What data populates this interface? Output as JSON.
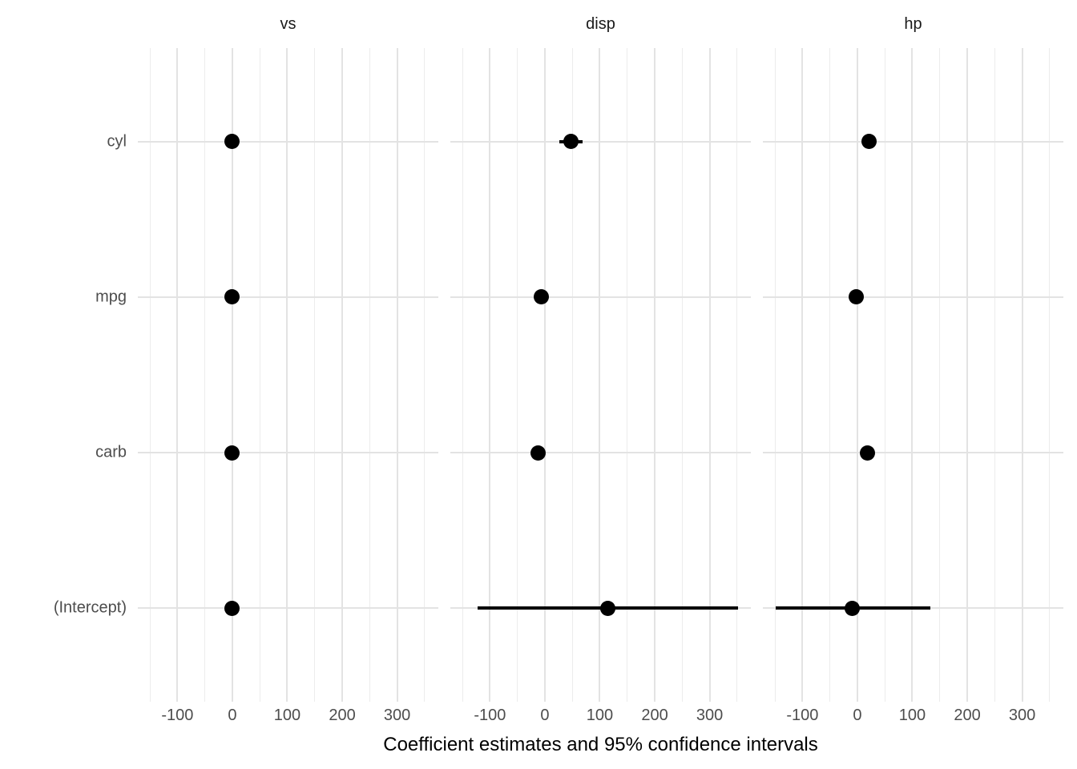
{
  "axis": {
    "x_title": "Coefficient estimates and 95% confidence intervals"
  },
  "chart_data": {
    "type": "scatter",
    "variant": "faceted-coefficient-dot-whisker-plot",
    "title": "",
    "xlabel": "Coefficient estimates and 95% confidence intervals",
    "ylabel": "",
    "grid": true,
    "legend_position": "none",
    "facet_titles": [
      "vs",
      "disp",
      "hp"
    ],
    "terms_top_to_bottom": [
      "cyl",
      "mpg",
      "carb",
      "(Intercept)"
    ],
    "x_domain": [
      -172,
      375
    ],
    "x_breaks_major": [
      -100,
      0,
      100,
      200,
      300
    ],
    "x_tick_labels": [
      "-100",
      "0",
      "100",
      "200",
      "300"
    ],
    "x_breaks_minor": [
      -150,
      -50,
      50,
      150,
      250,
      350
    ],
    "series": [
      {
        "facet": "vs",
        "points": [
          {
            "term": "cyl",
            "estimate": 0,
            "conf_low": -1,
            "conf_high": 1
          },
          {
            "term": "mpg",
            "estimate": 0,
            "conf_low": -1,
            "conf_high": 1
          },
          {
            "term": "carb",
            "estimate": 0,
            "conf_low": -1,
            "conf_high": 1
          },
          {
            "term": "(Intercept)",
            "estimate": 0,
            "conf_low": -1,
            "conf_high": 2
          }
        ]
      },
      {
        "facet": "disp",
        "points": [
          {
            "term": "cyl",
            "estimate": 48,
            "conf_low": 26,
            "conf_high": 69
          },
          {
            "term": "mpg",
            "estimate": -6,
            "conf_low": -14,
            "conf_high": 2
          },
          {
            "term": "carb",
            "estimate": -13,
            "conf_low": -21,
            "conf_high": -5
          },
          {
            "term": "(Intercept)",
            "estimate": 114,
            "conf_low": -123,
            "conf_high": 352
          }
        ]
      },
      {
        "facet": "hp",
        "points": [
          {
            "term": "cyl",
            "estimate": 22,
            "conf_low": 12,
            "conf_high": 32
          },
          {
            "term": "mpg",
            "estimate": -2,
            "conf_low": -10,
            "conf_high": 6
          },
          {
            "term": "carb",
            "estimate": 19,
            "conf_low": 9,
            "conf_high": 29
          },
          {
            "term": "(Intercept)",
            "estimate": -9,
            "conf_low": -149,
            "conf_high": 133
          }
        ]
      }
    ],
    "style": {
      "background": "#ffffff",
      "point_color": "#000000",
      "ci_color": "#000000",
      "grid_major_color": "#e3e3e3",
      "grid_minor_color": "#ececec",
      "axis_text_color": "#4d4d4d",
      "strip_text_color": "#1a1a1a",
      "axis_title_color": "#000000"
    }
  }
}
